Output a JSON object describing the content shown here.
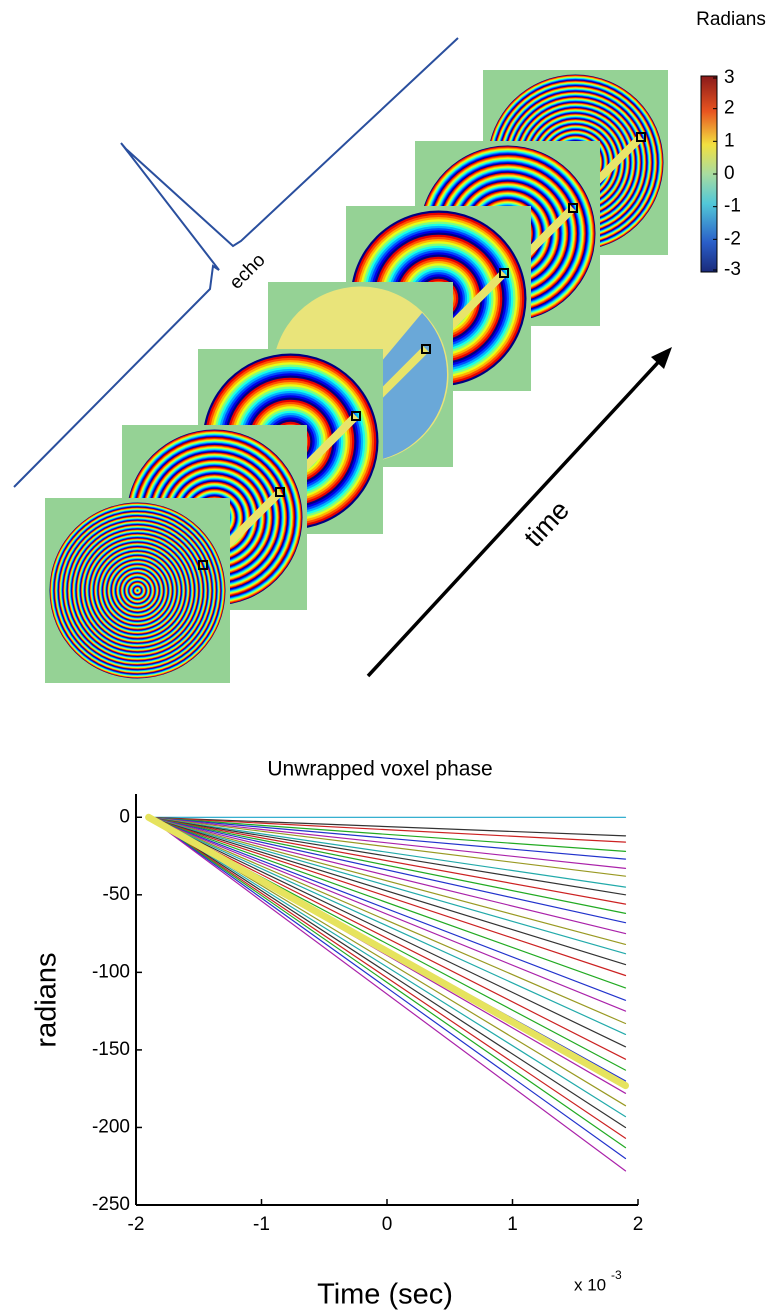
{
  "figure": {
    "colorbar_title": "Radians",
    "colorbar_lim": [
      -3,
      3
    ],
    "colorbar_ticks": [
      3,
      2,
      1,
      0,
      -1,
      -2,
      -3
    ],
    "echo_label": "echo",
    "time_label": "time"
  },
  "chart_data": {
    "type": "line",
    "title": "Unwrapped voxel phase",
    "x_label": "Time (sec)",
    "y_label": "radians",
    "x_multiplier": "x 10",
    "x_multiplier_exponent": "-3",
    "x": [
      -1.9,
      1.9
    ],
    "xlim": [
      -2,
      2
    ],
    "xticks": [
      -2,
      -1,
      0,
      1,
      2
    ],
    "ylim": [
      -250,
      15
    ],
    "yticks": [
      0,
      -50,
      -100,
      -150,
      -200,
      -250
    ],
    "series": [
      {
        "color": "#1aa5c9",
        "values": [
          0,
          0
        ]
      },
      {
        "color": "#333333",
        "values": [
          0,
          -12
        ]
      },
      {
        "color": "#cc2222",
        "values": [
          0,
          -16
        ]
      },
      {
        "color": "#22aa22",
        "values": [
          0,
          -22
        ]
      },
      {
        "color": "#2233cc",
        "values": [
          0,
          -27
        ]
      },
      {
        "color": "#aa22aa",
        "values": [
          0,
          -33
        ]
      },
      {
        "color": "#999922",
        "values": [
          0,
          -38
        ]
      },
      {
        "color": "#22aaaa",
        "values": [
          0,
          -45
        ]
      },
      {
        "color": "#333333",
        "values": [
          0,
          -50
        ]
      },
      {
        "color": "#cc2222",
        "values": [
          0,
          -56
        ]
      },
      {
        "color": "#22aa22",
        "values": [
          0,
          -62
        ]
      },
      {
        "color": "#2233cc",
        "values": [
          0,
          -68
        ]
      },
      {
        "color": "#aa22aa",
        "values": [
          0,
          -75
        ]
      },
      {
        "color": "#999922",
        "values": [
          0,
          -82
        ]
      },
      {
        "color": "#22aaaa",
        "values": [
          0,
          -88
        ]
      },
      {
        "color": "#333333",
        "values": [
          0,
          -95
        ]
      },
      {
        "color": "#cc2222",
        "values": [
          0,
          -102
        ]
      },
      {
        "color": "#22aa22",
        "values": [
          0,
          -110
        ]
      },
      {
        "color": "#2233cc",
        "values": [
          0,
          -118
        ]
      },
      {
        "color": "#aa22aa",
        "values": [
          0,
          -125
        ]
      },
      {
        "color": "#999922",
        "values": [
          0,
          -133
        ]
      },
      {
        "color": "#22aaaa",
        "values": [
          0,
          -140
        ]
      },
      {
        "color": "#333333",
        "values": [
          0,
          -148
        ]
      },
      {
        "color": "#cc2222",
        "values": [
          0,
          -156
        ]
      },
      {
        "color": "#22aa22",
        "values": [
          0,
          -163
        ]
      },
      {
        "color": "#2233cc",
        "values": [
          0,
          -170
        ]
      },
      {
        "color": "#aa22aa",
        "values": [
          0,
          -178
        ]
      },
      {
        "color": "#999922",
        "values": [
          0,
          -186
        ]
      },
      {
        "color": "#22aaaa",
        "values": [
          0,
          -193
        ]
      },
      {
        "color": "#333333",
        "values": [
          0,
          -200
        ]
      },
      {
        "color": "#cc2222",
        "values": [
          0,
          -207
        ]
      },
      {
        "color": "#22aa22",
        "values": [
          0,
          -213
        ]
      },
      {
        "color": "#2233cc",
        "values": [
          0,
          -220
        ]
      },
      {
        "color": "#aa22aa",
        "values": [
          0,
          -228
        ]
      },
      {
        "color": "#e6e35e",
        "values": [
          0,
          -173
        ],
        "highlight": true
      }
    ]
  }
}
